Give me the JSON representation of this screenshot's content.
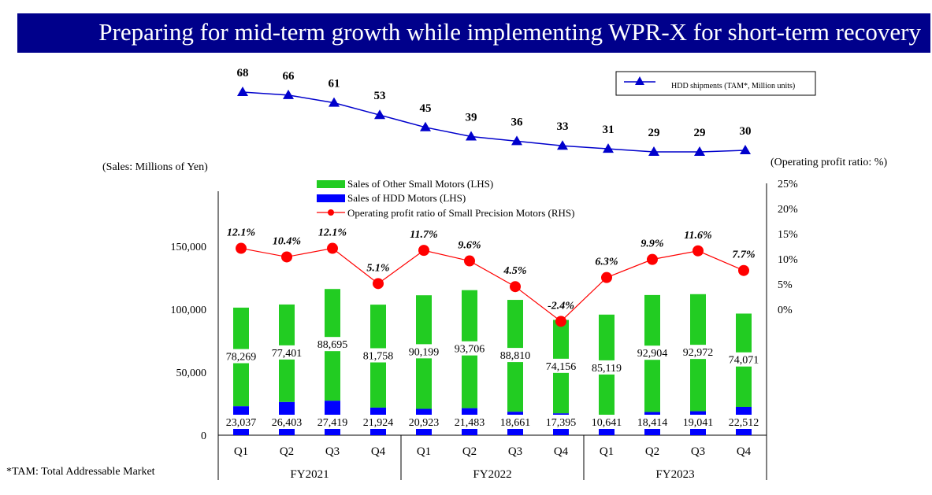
{
  "header": {
    "title": "Preparing for mid-term growth while implementing WPR-X for short-term recovery"
  },
  "footnote": "*TAM: Total Addressable Market",
  "chart_data": {
    "type": "bar",
    "stacked": true,
    "categories": [
      "Q1",
      "Q2",
      "Q3",
      "Q4",
      "Q1",
      "Q2",
      "Q3",
      "Q4",
      "Q1",
      "Q2",
      "Q3",
      "Q4"
    ],
    "groups": [
      {
        "label": "FY2021",
        "span": 4
      },
      {
        "label": "FY2022",
        "span": 4
      },
      {
        "label": "FY2023",
        "span": 4
      }
    ],
    "left_axis": {
      "label": "(Sales: Millions of Yen)",
      "ylim": [
        0,
        190000
      ],
      "ticks": [
        0,
        50000,
        100000,
        150000
      ],
      "tick_labels": [
        "0",
        "50,000",
        "100,000",
        "150,000"
      ]
    },
    "right_axis": {
      "label": "(Operating profit ratio: %)",
      "ylim": [
        -25,
        25
      ],
      "ticks": [
        0,
        5,
        10,
        15,
        20,
        25
      ],
      "tick_labels": [
        "0%",
        "5%",
        "10%",
        "15%",
        "20%",
        "25%"
      ]
    },
    "series": [
      {
        "name": "Sales of HDD Motors (LHS)",
        "kind": "bar",
        "color": "#0000ff",
        "values": [
          23037,
          26403,
          27419,
          21924,
          20923,
          21483,
          18661,
          17395,
          10641,
          18414,
          19041,
          22512
        ],
        "labels": [
          "23,037",
          "26,403",
          "27,419",
          "21,924",
          "20,923",
          "21,483",
          "18,661",
          "17,395",
          "10,641",
          "18,414",
          "19,041",
          "22,512"
        ]
      },
      {
        "name": "Sales of Other Small Motors (LHS)",
        "kind": "bar",
        "color": "#22cc22",
        "values": [
          78269,
          77401,
          88695,
          81758,
          90199,
          93706,
          88810,
          74156,
          85119,
          92904,
          92972,
          74071
        ],
        "labels": [
          "78,269",
          "77,401",
          "88,695",
          "81,758",
          "90,199",
          "93,706",
          "88,810",
          "74,156",
          "85,119",
          "92,904",
          "92,972",
          "74,071"
        ]
      },
      {
        "name": "Operating profit ratio of Small Precision Motors (RHS)",
        "kind": "line",
        "color": "#ff0000",
        "values": [
          12.1,
          10.4,
          12.1,
          5.1,
          11.7,
          9.6,
          4.5,
          -2.4,
          6.3,
          9.9,
          11.6,
          7.7
        ],
        "labels": [
          "12.1%",
          "10.4%",
          "12.1%",
          "5.1%",
          "11.7%",
          "9.6%",
          "4.5%",
          "-2.4%",
          "6.3%",
          "9.9%",
          "11.6%",
          "7.7%"
        ]
      }
    ],
    "hdd_shipments": {
      "name": "HDD shipments (TAM*, Million units)",
      "color": "#0000cc",
      "values": [
        68,
        66,
        61,
        53,
        45,
        39,
        36,
        33,
        31,
        29,
        29,
        30
      ],
      "labels": [
        "68",
        "66",
        "61",
        "53",
        "45",
        "39",
        "36",
        "33",
        "31",
        "29",
        "29",
        "30"
      ]
    }
  }
}
